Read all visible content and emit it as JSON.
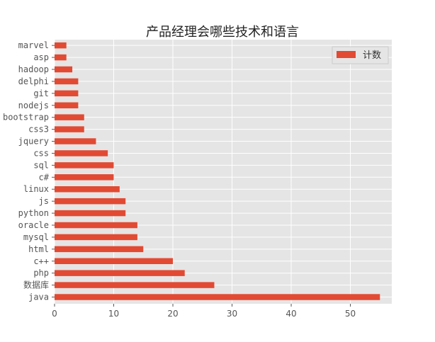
{
  "chart_data": {
    "type": "bar",
    "orientation": "horizontal",
    "title": "产品经理会哪些技术和语言",
    "xlabel": "",
    "ylabel": "",
    "xlim": [
      0,
      57
    ],
    "xticks": [
      0,
      10,
      20,
      30,
      40,
      50
    ],
    "grid": true,
    "legend_position": "top-right",
    "categories": [
      "java",
      "数据库",
      "php",
      "c++",
      "html",
      "mysql",
      "oracle",
      "python",
      "js",
      "linux",
      "c#",
      "sql",
      "css",
      "jquery",
      "css3",
      "bootstrap",
      "nodejs",
      "git",
      "delphi",
      "hadoop",
      "asp",
      "marvel"
    ],
    "series": [
      {
        "name": "计数",
        "color": "#e24a33",
        "values": [
          55,
          27,
          22,
          20,
          15,
          14,
          14,
          12,
          12,
          11,
          10,
          10,
          9,
          7,
          5,
          5,
          4,
          4,
          4,
          3,
          2,
          2
        ]
      }
    ],
    "colors": {
      "background": "#e5e5e5",
      "grid": "#ffffff",
      "bar": "#e24a33"
    }
  }
}
